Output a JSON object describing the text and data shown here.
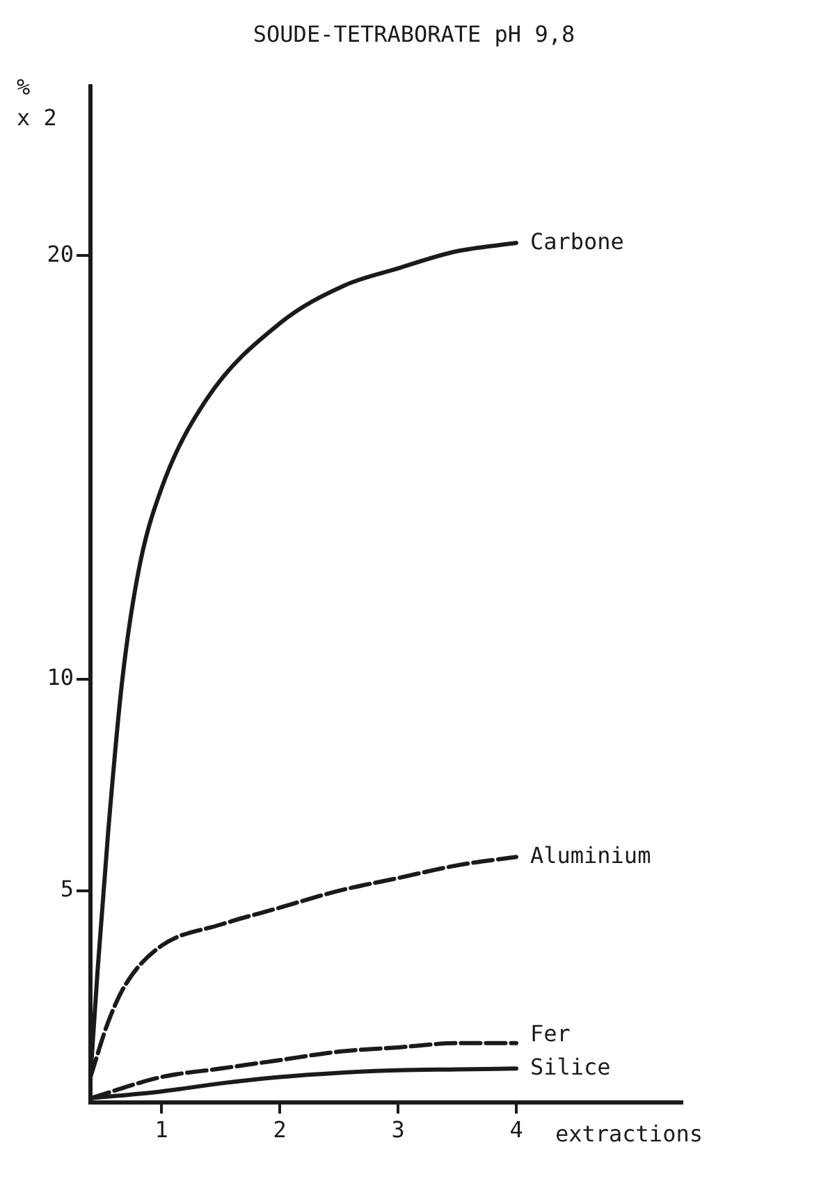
{
  "chart_data": {
    "type": "line",
    "title": "SOUDE-TETRABORATE pH 9,8",
    "xlabel": "extractions",
    "ylabel": "%\nx 2",
    "xlim": [
      0.4,
      5.4
    ],
    "xticks": [
      1,
      2,
      3,
      4
    ],
    "ylim": [
      0,
      24
    ],
    "yticks": [
      5,
      10,
      20
    ],
    "grid": false,
    "legend": false,
    "marker": "none",
    "series": [
      {
        "name": "Carbone",
        "color": "#1a1a1a",
        "line_style": "solid",
        "x": [
          0.4,
          0.46,
          0.55,
          0.67,
          0.81,
          1.0,
          1.38,
          2.0,
          2.55,
          3.0,
          3.49,
          4.0
        ],
        "values": [
          0.6,
          3.1,
          6.4,
          10.0,
          12.6,
          14.5,
          16.6,
          18.4,
          19.3,
          19.7,
          20.1,
          20.3
        ]
      },
      {
        "name": "Aluminium",
        "color": "#1a1a1a",
        "line_style": "dashed",
        "x": [
          0.4,
          0.55,
          0.7,
          1.0,
          1.5,
          2.0,
          2.5,
          3.0,
          3.5,
          4.0
        ],
        "values": [
          0.6,
          1.9,
          2.8,
          3.7,
          4.2,
          4.6,
          5.0,
          5.3,
          5.6,
          5.8
        ]
      },
      {
        "name": "Fer",
        "color": "#1a1a1a",
        "line_style": "dashed",
        "x": [
          0.4,
          1.0,
          1.5,
          2.0,
          2.5,
          3.0,
          3.5,
          4.0
        ],
        "values": [
          0.1,
          0.6,
          0.8,
          1.0,
          1.2,
          1.3,
          1.4,
          1.4
        ]
      },
      {
        "name": "Silice",
        "color": "#1a1a1a",
        "line_style": "solid",
        "x": [
          0.4,
          1.0,
          1.5,
          2.0,
          2.5,
          3.0,
          3.5,
          4.0
        ],
        "values": [
          0.1,
          0.26,
          0.45,
          0.6,
          0.7,
          0.76,
          0.78,
          0.8
        ]
      }
    ]
  }
}
